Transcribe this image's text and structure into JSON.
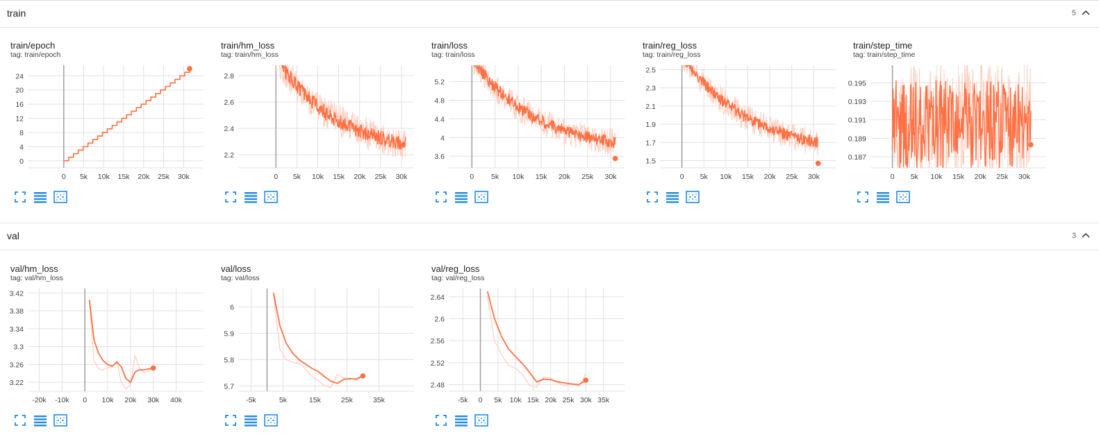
{
  "colors": {
    "series": "#ff7043",
    "smooth_light": "#ffccbc",
    "grid": "#e0e0e0",
    "axis": "#9e9e9e",
    "icon": "#1e88e5"
  },
  "icons": [
    "fullscreen-icon",
    "data-table-icon",
    "fit-domain-icon",
    "chevron-up-icon"
  ],
  "sections": [
    {
      "name": "train",
      "count": "5"
    },
    {
      "name": "val",
      "count": "3"
    }
  ],
  "cards": [
    {
      "title": "train/epoch",
      "tag": "tag: train/epoch"
    },
    {
      "title": "train/hm_loss",
      "tag": "tag: train/hm_loss"
    },
    {
      "title": "train/loss",
      "tag": "tag: train/loss"
    },
    {
      "title": "train/reg_loss",
      "tag": "tag: train/reg_loss"
    },
    {
      "title": "train/step_time",
      "tag": "tag: train/step_time"
    },
    {
      "title": "val/hm_loss",
      "tag": "tag: val/hm_loss"
    },
    {
      "title": "val/loss",
      "tag": "tag: val/loss"
    },
    {
      "title": "val/reg_loss",
      "tag": "tag: val/reg_loss"
    }
  ],
  "chart_data": [
    {
      "type": "line",
      "title": "train/epoch",
      "xlim": [
        -9000,
        35000
      ],
      "ylim": [
        -2,
        27
      ],
      "xticks": [
        0,
        5000,
        10000,
        15000,
        20000,
        25000,
        30000
      ],
      "xtick_labels": [
        "0",
        "5k",
        "10k",
        "15k",
        "20k",
        "25k",
        "30k"
      ],
      "yticks": [
        0,
        4,
        8,
        12,
        16,
        20,
        24
      ],
      "ytick_labels": [
        "0",
        "4",
        "8",
        "12",
        "16",
        "20",
        "24"
      ],
      "step": true,
      "series": [
        {
          "x0": 0,
          "x1": 31500,
          "y0": 0,
          "y1": 26
        }
      ],
      "end_point": [
        31500,
        26
      ]
    },
    {
      "type": "line",
      "title": "train/hm_loss",
      "xlim": [
        -9000,
        33000
      ],
      "ylim": [
        2.1,
        2.88
      ],
      "xticks": [
        0,
        5000,
        10000,
        15000,
        20000,
        25000,
        30000
      ],
      "xtick_labels": [
        "0",
        "5k",
        "10k",
        "15k",
        "20k",
        "25k",
        "30k"
      ],
      "yticks": [
        2.2,
        2.4,
        2.6,
        2.8
      ],
      "ytick_labels": [
        "2.2",
        "2.4",
        "2.6",
        "2.8"
      ],
      "noisy": {
        "x0": 0,
        "x1": 31000,
        "start": 2.95,
        "end": 2.2,
        "decay": 2.2,
        "noise": 0.05
      }
    },
    {
      "type": "line",
      "title": "train/loss",
      "xlim": [
        -5000,
        33000
      ],
      "ylim": [
        3.35,
        5.55
      ],
      "xticks": [
        0,
        5000,
        10000,
        15000,
        20000,
        25000,
        30000
      ],
      "xtick_labels": [
        "0",
        "5k",
        "10k",
        "15k",
        "20k",
        "25k",
        "30k"
      ],
      "yticks": [
        3.6,
        4,
        4.4,
        4.8,
        5.2
      ],
      "ytick_labels": [
        "3.6",
        "4",
        "4.4",
        "4.8",
        "5.2"
      ],
      "noisy": {
        "x0": 0,
        "x1": 31000,
        "start": 5.7,
        "end": 3.7,
        "decay": 2.3,
        "noise": 0.12
      },
      "end_point": [
        31000,
        3.55
      ]
    },
    {
      "type": "line",
      "title": "train/reg_loss",
      "xlim": [
        -5000,
        35000
      ],
      "ylim": [
        1.42,
        2.55
      ],
      "xticks": [
        0,
        5000,
        10000,
        15000,
        20000,
        25000,
        30000
      ],
      "xtick_labels": [
        "0",
        "5k",
        "10k",
        "15k",
        "20k",
        "25k",
        "30k"
      ],
      "yticks": [
        1.5,
        1.7,
        1.9,
        2.1,
        2.3,
        2.5
      ],
      "ytick_labels": [
        "1.5",
        "1.7",
        "1.9",
        "2.1",
        "2.3",
        "2.5"
      ],
      "noisy": {
        "x0": 0,
        "x1": 31000,
        "start": 2.65,
        "end": 1.55,
        "decay": 2.0,
        "noise": 0.06
      },
      "end_point": [
        31000,
        1.47
      ]
    },
    {
      "type": "line",
      "title": "train/step_time",
      "xlim": [
        -5000,
        35000
      ],
      "ylim": [
        0.1858,
        0.1969
      ],
      "xticks": [
        0,
        5000,
        10000,
        15000,
        20000,
        25000,
        30000
      ],
      "xtick_labels": [
        "0",
        "5k",
        "10k",
        "15k",
        "20k",
        "25k",
        "30k"
      ],
      "yticks": [
        0.187,
        0.189,
        0.191,
        0.193,
        0.195
      ],
      "ytick_labels": [
        "0.187",
        "0.189",
        "0.191",
        "0.193",
        "0.195"
      ],
      "flat_noisy": {
        "x0": 0,
        "x1": 31500,
        "mean": 0.1905,
        "amp": 0.006
      },
      "end_point": [
        31500,
        0.1883
      ]
    },
    {
      "type": "line",
      "title": "val/hm_loss",
      "xlim": [
        -25000,
        52000
      ],
      "ylim": [
        3.2,
        3.43
      ],
      "xticks": [
        -20000,
        -10000,
        0,
        10000,
        20000,
        30000,
        40000
      ],
      "xtick_labels": [
        "-20k",
        "-10k",
        "0",
        "10k",
        "20k",
        "30k",
        "40k"
      ],
      "yticks": [
        3.22,
        3.26,
        3.3,
        3.34,
        3.38,
        3.42
      ],
      "ytick_labels": [
        "3.22",
        "3.26",
        "3.3",
        "3.34",
        "3.38",
        "3.42"
      ],
      "series": [
        {
          "name": "smoothed",
          "x": [
            2000,
            4000,
            6000,
            8000,
            10000,
            12000,
            14000,
            16000,
            18000,
            20000,
            22000,
            24000,
            26000,
            30000
          ],
          "y": [
            3.405,
            3.315,
            3.285,
            3.268,
            3.26,
            3.256,
            3.265,
            3.255,
            3.228,
            3.22,
            3.243,
            3.248,
            3.248,
            3.252
          ]
        },
        {
          "name": "raw",
          "x": [
            2000,
            4000,
            6000,
            8000,
            10000,
            12000,
            14000,
            16000,
            18000,
            20000,
            22000,
            24000,
            26000,
            28000,
            30000
          ],
          "y": [
            3.4,
            3.268,
            3.25,
            3.247,
            3.253,
            3.255,
            3.268,
            3.22,
            3.205,
            3.215,
            3.28,
            3.25,
            3.242,
            3.245,
            3.255
          ]
        }
      ],
      "end_point": [
        30000,
        3.252
      ]
    },
    {
      "type": "line",
      "title": "val/loss",
      "xlim": [
        -9000,
        46000
      ],
      "ylim": [
        5.68,
        6.07
      ],
      "xticks": [
        -5000,
        5000,
        15000,
        25000,
        35000
      ],
      "xtick_labels": [
        "-5k",
        "5k",
        "15k",
        "25k",
        "35k"
      ],
      "yticks": [
        5.7,
        5.8,
        5.9,
        6
      ],
      "ytick_labels": [
        "5.7",
        "5.8",
        "5.9",
        "6"
      ],
      "series": [
        {
          "name": "smoothed",
          "x": [
            2000,
            4000,
            6000,
            8000,
            10000,
            14000,
            16000,
            18000,
            20000,
            22000,
            24000,
            26000,
            28000,
            30000
          ],
          "y": [
            6.055,
            5.93,
            5.862,
            5.825,
            5.8,
            5.767,
            5.755,
            5.735,
            5.718,
            5.71,
            5.725,
            5.728,
            5.725,
            5.738
          ]
        },
        {
          "name": "raw",
          "x": [
            2000,
            4000,
            6000,
            8000,
            10000,
            12000,
            14000,
            16000,
            18000,
            20000,
            22000,
            24000,
            26000,
            28000,
            30000
          ],
          "y": [
            6.05,
            5.84,
            5.8,
            5.79,
            5.785,
            5.765,
            5.735,
            5.72,
            5.7,
            5.695,
            5.745,
            5.73,
            5.725,
            5.73,
            5.742
          ]
        }
      ],
      "end_point": [
        30000,
        5.738
      ]
    },
    {
      "type": "line",
      "title": "val/reg_loss",
      "xlim": [
        -9000,
        41000
      ],
      "ylim": [
        2.468,
        2.655
      ],
      "xticks": [
        -5000,
        0,
        5000,
        10000,
        15000,
        20000,
        25000,
        30000,
        35000
      ],
      "xtick_labels": [
        "-5k",
        "0",
        "5k",
        "10k",
        "15k",
        "20k",
        "25k",
        "30k",
        "35k"
      ],
      "yticks": [
        2.48,
        2.52,
        2.56,
        2.6,
        2.64
      ],
      "ytick_labels": [
        "2.48",
        "2.52",
        "2.56",
        "2.6",
        "2.64"
      ],
      "series": [
        {
          "name": "smoothed",
          "x": [
            2000,
            4000,
            6000,
            8000,
            10000,
            12000,
            14000,
            16000,
            18000,
            20000,
            22000,
            24000,
            26000,
            28000,
            30000
          ],
          "y": [
            2.65,
            2.6,
            2.568,
            2.545,
            2.531,
            2.518,
            2.502,
            2.485,
            2.49,
            2.489,
            2.485,
            2.483,
            2.481,
            2.48,
            2.488
          ]
        },
        {
          "name": "raw",
          "x": [
            2000,
            4000,
            6000,
            8000,
            10000,
            12000,
            14000,
            16000,
            18000,
            20000,
            22000,
            24000,
            26000,
            28000,
            30000
          ],
          "y": [
            2.64,
            2.56,
            2.535,
            2.515,
            2.51,
            2.498,
            2.478,
            2.476,
            2.494,
            2.492,
            2.483,
            2.478,
            2.481,
            2.477,
            2.5
          ]
        }
      ],
      "end_point": [
        30000,
        2.488
      ]
    }
  ]
}
